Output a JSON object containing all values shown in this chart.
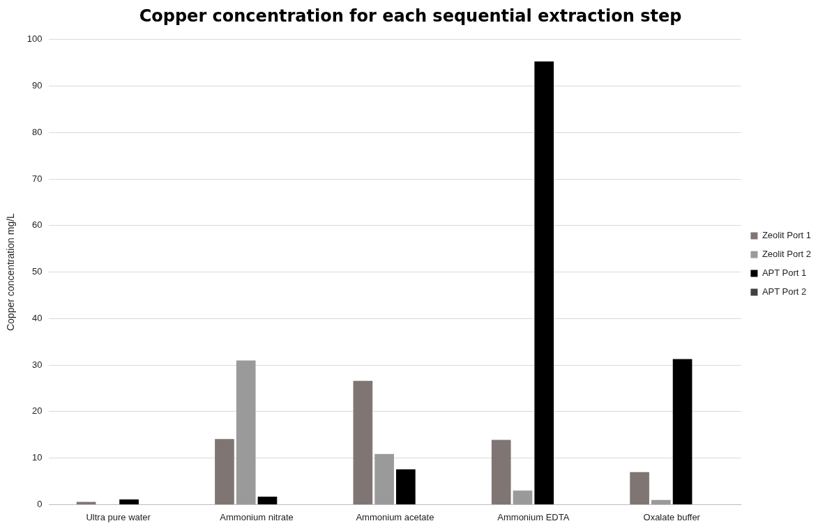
{
  "chart_data": {
    "type": "bar",
    "title": "Copper concentration for each sequential extraction step",
    "ylabel": "Copper concentration mg/L",
    "categories": [
      "Ultra pure water",
      "Ammonium nitrate",
      "Ammonium acetate",
      "Ammonium EDTA",
      "Oxalate buffer"
    ],
    "series": [
      {
        "name": "Zeolit Port 1",
        "color": "#7f7674",
        "values": [
          0.6,
          14.1,
          26.6,
          13.9,
          7.0
        ]
      },
      {
        "name": "Zeolit Port 2",
        "color": "#9a9a9a",
        "values": [
          0,
          31.0,
          10.9,
          3.0,
          1.0
        ]
      },
      {
        "name": "APT Port 1",
        "color": "#000000",
        "values": [
          1.1,
          1.7,
          7.6,
          95.3,
          31.3
        ]
      },
      {
        "name": "APT Port 2",
        "color": "#404040",
        "values": [
          0,
          0,
          0,
          0,
          0
        ]
      }
    ],
    "ylim": [
      0,
      100
    ],
    "yticks": [
      0,
      10,
      20,
      30,
      40,
      50,
      60,
      70,
      80,
      90,
      100
    ],
    "grid": "y",
    "legend": "right"
  }
}
